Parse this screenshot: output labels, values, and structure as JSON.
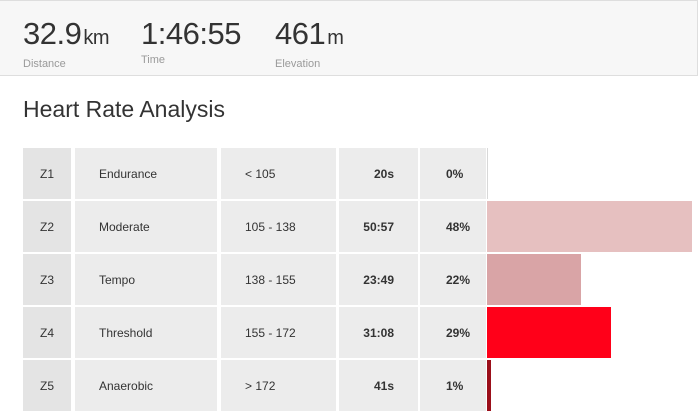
{
  "stats": [
    {
      "value": "32.9",
      "unit": "km",
      "label": "Distance"
    },
    {
      "value": "1:46:55",
      "unit": "",
      "label": "Time"
    },
    {
      "value": "461",
      "unit": "m",
      "label": "Elevation"
    }
  ],
  "section_title": "Heart Rate Analysis",
  "zones": [
    {
      "id": "Z1",
      "name": "Endurance",
      "range": "< 105",
      "time": "20s",
      "percent": "0%",
      "fraction": 0.0,
      "color": "#c9c9c9"
    },
    {
      "id": "Z2",
      "name": "Moderate",
      "range": "105 - 138",
      "time": "50:57",
      "percent": "48%",
      "fraction": 0.48,
      "color": "#e6c0c0"
    },
    {
      "id": "Z3",
      "name": "Tempo",
      "range": "138 - 155",
      "time": "23:49",
      "percent": "22%",
      "fraction": 0.22,
      "color": "#d9a4a6"
    },
    {
      "id": "Z4",
      "name": "Threshold",
      "range": "155 - 172",
      "time": "31:08",
      "percent": "29%",
      "fraction": 0.29,
      "color": "#ff0019"
    },
    {
      "id": "Z5",
      "name": "Anaerobic",
      "range": "> 172",
      "time": "41s",
      "percent": "1%",
      "fraction": 0.01,
      "color": "#9b0f1a"
    }
  ]
}
